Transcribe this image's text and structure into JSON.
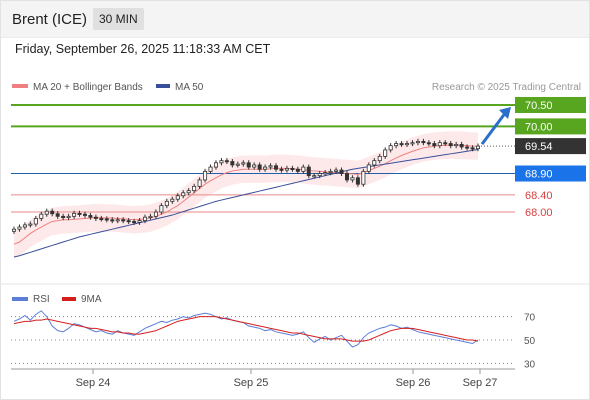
{
  "header": {
    "instrument": "Brent (ICE)",
    "interval": "30 MIN"
  },
  "timestamp": "Friday, September 26, 2025 11:18:33 AM CET",
  "legend": {
    "ma20_label": "MA 20 + Bollinger Bands",
    "ma50_label": "MA 50",
    "credit": "Research © 2025 Trading Central"
  },
  "rsi_legend": {
    "rsi_label": "RSI",
    "ma_label": "9MA"
  },
  "colors": {
    "resistance": "#58a61f",
    "support": "#e88a8a",
    "pivot": "#1f5fb0",
    "pivot_tag": "#1a73e8",
    "last_tag": "#333333",
    "candle": "#333333",
    "ma20": "#f08080",
    "ma50": "#3a4f9a",
    "band": "#fde3e3",
    "rsi": "#5b7fd8",
    "rsi_ma": "#d51f1f",
    "arrow": "#2a6fc9"
  },
  "chart_data": [
    {
      "type": "line",
      "title": "Brent (ICE) 30 MIN",
      "x_ticks": [
        "Sep 24",
        "Sep 25",
        "Sep 26",
        "Sep 27"
      ],
      "ylim": [
        66.6,
        70.85
      ],
      "price_levels": [
        {
          "label": "70.50",
          "value": 70.5,
          "kind": "resistance"
        },
        {
          "label": "70.00",
          "value": 70.0,
          "kind": "resistance"
        },
        {
          "label": "69.54",
          "value": 69.54,
          "kind": "last"
        },
        {
          "label": "68.90",
          "value": 68.9,
          "kind": "pivot"
        },
        {
          "label": "68.40",
          "value": 68.4,
          "kind": "support"
        },
        {
          "label": "68.00",
          "value": 68.0,
          "kind": "support"
        }
      ],
      "series": [
        {
          "name": "Brent close",
          "values": [
            67.6,
            67.65,
            67.7,
            67.72,
            67.85,
            67.95,
            68.02,
            67.96,
            67.9,
            67.87,
            67.9,
            67.97,
            67.95,
            67.92,
            67.88,
            67.85,
            67.84,
            67.82,
            67.8,
            67.82,
            67.8,
            67.78,
            67.76,
            67.8,
            67.88,
            67.9,
            68.0,
            68.15,
            68.25,
            68.3,
            68.38,
            68.45,
            68.5,
            68.6,
            68.75,
            68.95,
            69.05,
            69.15,
            69.2,
            69.18,
            69.1,
            69.12,
            69.15,
            69.05,
            69.1,
            69.0,
            69.05,
            69.08,
            69.0,
            68.98,
            69.02,
            69.0,
            68.95,
            69.05,
            68.85,
            68.85,
            68.9,
            68.92,
            68.95,
            68.98,
            68.9,
            68.75,
            68.8,
            68.65,
            68.95,
            69.1,
            69.2,
            69.3,
            69.45,
            69.55,
            69.6,
            69.58,
            69.6,
            69.62,
            69.65,
            69.62,
            69.6,
            69.55,
            69.62,
            69.6,
            69.55,
            69.58,
            69.52,
            69.5,
            69.48,
            69.54
          ]
        },
        {
          "name": "MA 20",
          "values": [
            67.25,
            67.3,
            67.4,
            67.5,
            67.58,
            67.65,
            67.72,
            67.78,
            67.8,
            67.82,
            67.82,
            67.83,
            67.84,
            67.85,
            67.86,
            67.87,
            67.87,
            67.86,
            67.86,
            67.85,
            67.84,
            67.83,
            67.82,
            67.83,
            67.84,
            67.86,
            67.9,
            67.95,
            68.0,
            68.08,
            68.15,
            68.25,
            68.35,
            68.45,
            68.55,
            68.65,
            68.73,
            68.8,
            68.87,
            68.92,
            68.96,
            68.98,
            69.0,
            69.0,
            69.0,
            69.0,
            69.0,
            69.01,
            69.02,
            69.02,
            69.02,
            69.01,
            69.0,
            68.99,
            68.97,
            68.96,
            68.95,
            68.94,
            68.93,
            68.92,
            68.91,
            68.9,
            68.89,
            68.88,
            68.92,
            68.97,
            69.02,
            69.07,
            69.13,
            69.2,
            69.26,
            69.32,
            69.37,
            69.42,
            69.46,
            69.5,
            69.52,
            69.54,
            69.55,
            69.56,
            69.56,
            69.56,
            69.56,
            69.55,
            69.54,
            69.54
          ]
        },
        {
          "name": "MA 50",
          "values": [
            66.95,
            66.98,
            67.02,
            67.06,
            67.1,
            67.14,
            67.18,
            67.22,
            67.26,
            67.3,
            67.34,
            67.38,
            67.42,
            67.45,
            67.48,
            67.51,
            67.54,
            67.57,
            67.6,
            67.63,
            67.66,
            67.69,
            67.72,
            67.75,
            67.78,
            67.81,
            67.84,
            67.87,
            67.9,
            67.93,
            67.97,
            68.01,
            68.05,
            68.09,
            68.13,
            68.17,
            68.21,
            68.25,
            68.28,
            68.31,
            68.34,
            68.37,
            68.4,
            68.43,
            68.46,
            68.49,
            68.52,
            68.55,
            68.58,
            68.61,
            68.64,
            68.67,
            68.7,
            68.73,
            68.76,
            68.79,
            68.82,
            68.85,
            68.88,
            68.91,
            68.94,
            68.97,
            69.0,
            69.02,
            69.04,
            69.06,
            69.08,
            69.1,
            69.12,
            69.14,
            69.16,
            69.18,
            69.2,
            69.22,
            69.24,
            69.26,
            69.28,
            69.3,
            69.32,
            69.34,
            69.36,
            69.38,
            69.4,
            69.42,
            69.44,
            69.46
          ]
        }
      ],
      "projection": {
        "from": 69.54,
        "to": 70.5
      }
    },
    {
      "type": "line",
      "title": "RSI",
      "ylim": [
        20,
        80
      ],
      "y_ticks": [
        70,
        50,
        30
      ],
      "series": [
        {
          "name": "RSI",
          "values": [
            66,
            68,
            71,
            67,
            72,
            75,
            70,
            62,
            58,
            57,
            60,
            64,
            63,
            61,
            59,
            57,
            58,
            56,
            55,
            58,
            56,
            55,
            54,
            57,
            60,
            62,
            64,
            66,
            65,
            67,
            68,
            70,
            69,
            71,
            72,
            73,
            72,
            70,
            68,
            69,
            67,
            66,
            65,
            62,
            61,
            60,
            58,
            59,
            57,
            56,
            55,
            54,
            55,
            57,
            52,
            48,
            51,
            53,
            50,
            52,
            54,
            49,
            44,
            46,
            52,
            56,
            58,
            60,
            61,
            63,
            62,
            60,
            61,
            59,
            57,
            56,
            55,
            54,
            53,
            52,
            51,
            50,
            49,
            48,
            47,
            50
          ]
        },
        {
          "name": "9MA",
          "values": [
            64,
            65,
            66,
            66,
            67,
            67,
            68,
            67,
            66,
            65,
            64,
            63,
            62,
            61,
            60,
            60,
            59,
            58,
            57,
            57,
            56,
            56,
            55,
            55,
            56,
            57,
            58,
            60,
            62,
            64,
            66,
            67,
            68,
            69,
            70,
            70,
            70,
            70,
            69,
            68,
            67,
            66,
            65,
            64,
            63,
            62,
            61,
            60,
            59,
            58,
            57,
            56,
            56,
            55,
            54,
            53,
            52,
            51,
            51,
            51,
            51,
            50,
            49,
            49,
            49,
            50,
            52,
            54,
            56,
            58,
            59,
            60,
            60,
            60,
            59,
            58,
            57,
            56,
            55,
            54,
            53,
            52,
            51,
            50,
            50,
            49
          ]
        }
      ]
    }
  ]
}
